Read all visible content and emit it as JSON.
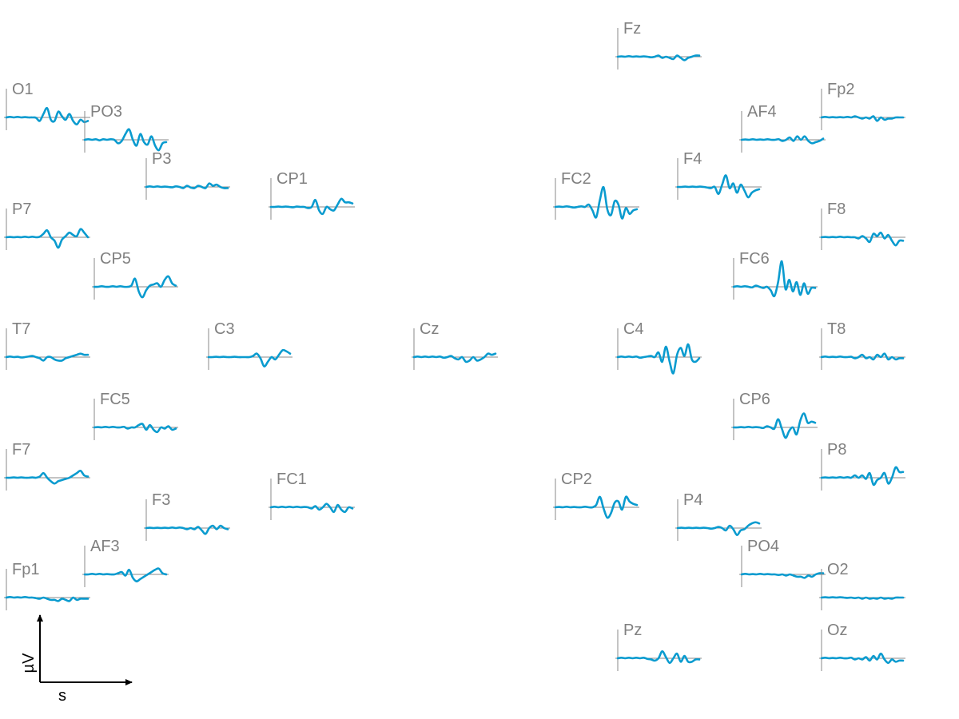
{
  "chart_data": {
    "type": "line",
    "layout": "topographic",
    "color": "#0a9bcf",
    "axis_color": "#8a8a8a",
    "scale_legend": {
      "xlabel": "s",
      "ylabel": "µV"
    },
    "channels": [
      {
        "name": "O1",
        "values": [
          0,
          0.5,
          0,
          0.5,
          0,
          0.3,
          0,
          0,
          -0.3,
          -3,
          3,
          8,
          -2,
          -3,
          5,
          1,
          -2,
          3,
          -3,
          -6,
          -2,
          -4,
          -3
        ]
      },
      {
        "name": "PO3",
        "values": [
          0,
          0.5,
          0,
          0.5,
          -0.5,
          0.5,
          0,
          0.5,
          0,
          -3,
          -1,
          5,
          9,
          0,
          -5,
          5,
          -2,
          -4,
          3,
          -5,
          -9,
          -3,
          -2
        ]
      },
      {
        "name": "P3",
        "values": [
          0,
          0.5,
          0,
          0.5,
          0,
          0.3,
          0,
          -0.3,
          0.5,
          0,
          -1,
          1,
          -0.5,
          -1,
          1,
          0,
          -1,
          3,
          1,
          2,
          0,
          -1,
          -1
        ]
      },
      {
        "name": "CP1",
        "values": [
          0,
          0,
          0.3,
          0,
          0.3,
          0,
          -0.3,
          0.3,
          0,
          0,
          -1,
          0,
          6,
          -3,
          -6,
          0,
          -2,
          -3,
          2,
          7,
          4,
          4,
          3
        ]
      },
      {
        "name": "P7",
        "values": [
          0,
          0.3,
          0,
          0.3,
          0,
          0.5,
          0,
          0.5,
          0,
          0.5,
          3,
          6,
          0,
          -3,
          -9,
          -2,
          1,
          4,
          2,
          1,
          7,
          4,
          0
        ]
      },
      {
        "name": "CP5",
        "values": [
          0,
          0,
          0.5,
          0,
          0,
          0.5,
          0,
          0.5,
          0,
          0,
          1,
          7,
          -4,
          -9,
          -3,
          1,
          2,
          3,
          0,
          6,
          9,
          3,
          1
        ]
      },
      {
        "name": "T7",
        "values": [
          0,
          0.5,
          0,
          0.3,
          -0.3,
          0,
          0.5,
          1,
          0,
          -1,
          -3,
          0,
          0,
          -2,
          -3,
          -3,
          -1,
          0,
          1,
          2,
          3,
          2,
          2
        ]
      },
      {
        "name": "C3",
        "values": [
          0,
          0,
          0.3,
          0,
          0.3,
          0,
          0,
          0.3,
          0,
          0,
          0,
          0,
          1,
          3,
          -1,
          -8,
          -4,
          0,
          -2,
          2,
          6,
          5,
          3
        ]
      },
      {
        "name": "Cz",
        "values": [
          0,
          0.5,
          0,
          0.5,
          0,
          0.5,
          0,
          0.5,
          -0.5,
          0,
          1,
          -1,
          -2,
          0,
          -4,
          -3,
          0,
          -3,
          -2,
          0,
          3,
          2,
          3
        ]
      },
      {
        "name": "FC5",
        "values": [
          0,
          0.3,
          0,
          0.5,
          0,
          0.5,
          0,
          0,
          0.5,
          -1,
          0,
          0,
          2,
          3,
          -2,
          2,
          -2,
          -4,
          0,
          -1,
          1,
          -2,
          -1
        ]
      },
      {
        "name": "F7",
        "values": [
          0,
          0,
          0.3,
          0,
          0.3,
          0,
          0,
          0.3,
          0,
          1,
          4,
          0,
          -3,
          -5,
          -3,
          -2,
          -1,
          0,
          2,
          4,
          6,
          2,
          1
        ]
      },
      {
        "name": "FC1",
        "values": [
          0,
          0.5,
          0,
          0.5,
          0,
          0.5,
          0,
          0.5,
          0,
          0.3,
          0,
          -1,
          1,
          -2,
          0,
          3,
          0,
          -4,
          2,
          -2,
          -4,
          0,
          -1
        ]
      },
      {
        "name": "F3",
        "values": [
          0,
          0.3,
          0,
          0.3,
          0,
          0.3,
          0,
          0.5,
          0,
          0.5,
          0,
          -1,
          0,
          -1,
          1,
          -2,
          -5,
          0,
          2,
          -1,
          2,
          0,
          -1
        ]
      },
      {
        "name": "AF3",
        "values": [
          0,
          0,
          0.5,
          0,
          0.5,
          0,
          0.3,
          0,
          0,
          1,
          2,
          -1,
          4,
          -3,
          -6,
          -4,
          -2,
          0,
          2,
          4,
          5,
          1,
          0
        ]
      },
      {
        "name": "Fp1",
        "values": [
          0,
          0.5,
          0,
          0.3,
          0,
          0.5,
          0,
          0,
          -0.5,
          -1,
          0,
          -1,
          -2,
          -2,
          -3,
          -1,
          -2,
          -3,
          0,
          -2,
          -1,
          -1,
          -1
        ]
      },
      {
        "name": "Fz",
        "values": [
          0,
          0.3,
          0,
          0.5,
          0,
          0.3,
          0,
          0.3,
          0,
          -0.5,
          0,
          1,
          -1,
          0,
          -1,
          -2,
          1,
          -1,
          -3,
          -1,
          0,
          1,
          1
        ]
      },
      {
        "name": "Fp2",
        "values": [
          0,
          0.5,
          0,
          0.3,
          0,
          0.3,
          0,
          0.5,
          0,
          1,
          0,
          -1,
          0,
          -1,
          1,
          -3,
          0,
          -2,
          -1,
          -1,
          0,
          0,
          0
        ]
      },
      {
        "name": "AF4",
        "values": [
          0,
          0.3,
          0,
          0.5,
          0,
          0.3,
          0,
          0.5,
          0,
          0,
          0.5,
          -1,
          0,
          2,
          -1,
          3,
          0,
          3,
          -1,
          -3,
          -2,
          -1,
          1
        ]
      },
      {
        "name": "F4",
        "values": [
          0,
          0,
          0.3,
          0,
          0.3,
          0,
          0.3,
          0,
          -0.5,
          -1,
          0,
          -6,
          2,
          10,
          -1,
          3,
          -5,
          2,
          -3,
          -9,
          -5,
          -3,
          -2
        ]
      },
      {
        "name": "FC2",
        "values": [
          0,
          0.3,
          0,
          0.5,
          0,
          -0.5,
          0,
          0.5,
          0,
          2,
          -3,
          -9,
          6,
          17,
          -2,
          -7,
          5,
          2,
          -10,
          -1,
          -6,
          -3,
          -2
        ]
      },
      {
        "name": "F8",
        "values": [
          0,
          0.3,
          0,
          0.3,
          0,
          0.5,
          0,
          0.3,
          0,
          0,
          -1,
          1,
          -1,
          -4,
          3,
          1,
          4,
          -1,
          2,
          -3,
          -7,
          -3,
          -3
        ]
      },
      {
        "name": "FC6",
        "values": [
          0,
          0.5,
          0,
          0.5,
          0,
          -0.5,
          1,
          0,
          -1,
          0,
          -3,
          -8,
          4,
          22,
          -2,
          6,
          -4,
          4,
          -7,
          3,
          -6,
          -1,
          -1
        ]
      },
      {
        "name": "C4",
        "values": [
          0,
          0.5,
          0,
          0.5,
          0,
          0.5,
          -0.5,
          0,
          0.5,
          1,
          0,
          4,
          -4,
          9,
          -4,
          -14,
          2,
          8,
          1,
          11,
          -2,
          -4,
          -1
        ]
      },
      {
        "name": "T8",
        "values": [
          0,
          0.5,
          0,
          0.3,
          0,
          0.5,
          0,
          0,
          0.3,
          -1,
          0,
          2,
          -1,
          0,
          -2,
          2,
          0,
          3,
          -2,
          0,
          -2,
          -1,
          -1
        ]
      },
      {
        "name": "CP6",
        "values": [
          0,
          0,
          0.3,
          0,
          0.5,
          0,
          0.3,
          0,
          -0.5,
          1,
          0,
          -1,
          7,
          -1,
          -9,
          -3,
          0,
          -6,
          6,
          12,
          4,
          5,
          4
        ]
      },
      {
        "name": "P8",
        "values": [
          0,
          0.3,
          0,
          0.3,
          0,
          0.5,
          0,
          0.5,
          0,
          2,
          0,
          2,
          -1,
          4,
          -6,
          -2,
          0,
          4,
          -5,
          0,
          9,
          5,
          5
        ]
      },
      {
        "name": "CP2",
        "values": [
          0,
          0.3,
          0,
          0.5,
          0,
          0.3,
          0,
          0,
          0.5,
          0,
          0,
          2,
          9,
          -1,
          -9,
          -5,
          4,
          5,
          -2,
          9,
          5,
          3,
          2
        ]
      },
      {
        "name": "P4",
        "values": [
          0,
          0.3,
          0,
          0.3,
          0,
          0.3,
          0,
          0.3,
          0,
          -0.5,
          0,
          1,
          0,
          -2,
          2,
          -1,
          -6,
          -2,
          -1,
          2,
          4,
          5,
          4
        ]
      },
      {
        "name": "PO4",
        "values": [
          0,
          0.5,
          0,
          0.3,
          0,
          0.5,
          0,
          0.3,
          0,
          0,
          -0.5,
          0,
          -1,
          0,
          -1,
          -2,
          -2,
          -3,
          -1,
          -2,
          0,
          1,
          1
        ]
      },
      {
        "name": "O2",
        "values": [
          0,
          0.3,
          0,
          0.3,
          0,
          0.3,
          0,
          -0.3,
          0,
          -0.5,
          0,
          -1,
          0,
          -1,
          -0.5,
          -1,
          0,
          -1,
          -0.5,
          -1,
          0,
          0,
          0
        ]
      },
      {
        "name": "Pz",
        "values": [
          0,
          0.5,
          0,
          0.5,
          0,
          0.5,
          0,
          0.5,
          -0.5,
          -1,
          -2,
          0,
          6,
          1,
          -4,
          0,
          4,
          -3,
          2,
          -3,
          -3,
          -1,
          -1
        ]
      },
      {
        "name": "Oz",
        "values": [
          0,
          0.5,
          0,
          0.3,
          0,
          0.5,
          0,
          0,
          0.5,
          -1,
          0,
          -1,
          1,
          -2,
          2,
          -1,
          4,
          -1,
          -4,
          -1,
          -3,
          -2,
          -2
        ]
      }
    ]
  }
}
